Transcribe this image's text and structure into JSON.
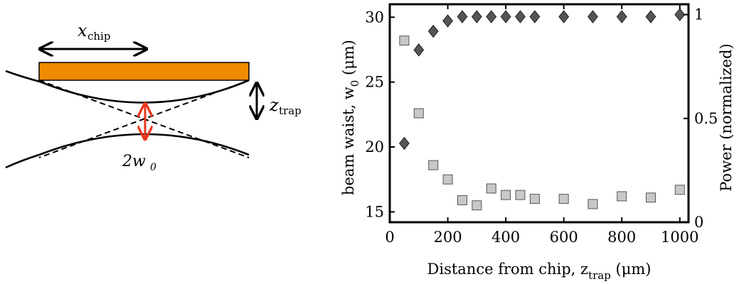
{
  "diagram": {
    "x_label_main": "x",
    "x_label_sub": "chip",
    "z_label_main": "z",
    "z_label_sub": "trap",
    "waist_label_main": "2w",
    "waist_label_sub": "0",
    "colors": {
      "chip": "#f08a00",
      "arrow_red": "#e8371e",
      "line": "#000000"
    }
  },
  "chart_data": {
    "type": "scatter",
    "xlabel_main": "Distance from chip, z",
    "xlabel_sub": "trap",
    "xlabel_unit": " (μm)",
    "ylabel_left_main": "beam waist, w",
    "ylabel_left_sub": "0",
    "ylabel_left_unit": " (μm)",
    "ylabel_right": "Power (normalized)",
    "xlim": [
      0,
      1030
    ],
    "ylim_left": [
      14.2,
      31
    ],
    "ylim_right": [
      0,
      1.05
    ],
    "x_ticks": [
      0,
      200,
      400,
      600,
      800,
      1000
    ],
    "y_ticks_left": [
      15,
      20,
      25,
      30
    ],
    "y_ticks_right": [
      0,
      0.5,
      1
    ],
    "y_ticks_right_labels": [
      "0",
      "0.5",
      "1"
    ],
    "series": [
      {
        "axis": "left",
        "marker": "square",
        "color": "#c8c8c8",
        "x": [
          50,
          100,
          150,
          200,
          250,
          300,
          350,
          400,
          450,
          500,
          600,
          700,
          800,
          900,
          1000
        ],
        "y": [
          28.2,
          22.6,
          18.6,
          17.5,
          15.9,
          15.5,
          16.8,
          16.3,
          16.3,
          16.0,
          16.0,
          15.6,
          16.2,
          16.1,
          16.7
        ]
      },
      {
        "axis": "right",
        "marker": "diamond",
        "color": "#555555",
        "x": [
          50,
          100,
          150,
          200,
          250,
          300,
          350,
          400,
          450,
          500,
          600,
          700,
          800,
          900,
          1000
        ],
        "y": [
          0.38,
          0.83,
          0.92,
          0.97,
          0.99,
          0.99,
          0.99,
          0.99,
          0.99,
          0.99,
          0.99,
          0.99,
          0.99,
          0.99,
          1.0
        ]
      }
    ]
  }
}
